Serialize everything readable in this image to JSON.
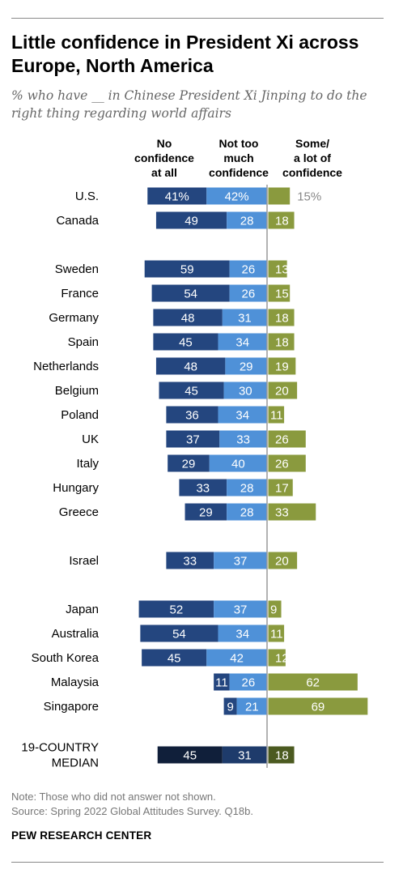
{
  "header": {
    "title": "Little confidence in President Xi across Europe, North America",
    "subtitle": "% who have __ in Chinese President Xi Jinping to do the right thing regarding world affairs"
  },
  "columns": {
    "no_confidence": "No\nconfidence\nat all",
    "not_too_much": "Not too\nmuch\nconfidence",
    "some_lot": "Some/\na lot of\nconfidence"
  },
  "chart_data": {
    "type": "bar",
    "orientation": "horizontal-diverging",
    "series": [
      {
        "name": "No confidence at all",
        "color": "#24467f"
      },
      {
        "name": "Not too much confidence",
        "color": "#4f91d8"
      },
      {
        "name": "Some/a lot of confidence",
        "color": "#8a9a3e"
      }
    ],
    "median_colors": [
      "#101f3a",
      "#1e3b6b",
      "#4b5a20"
    ],
    "rows": [
      {
        "label": "U.S.",
        "values": [
          41,
          42,
          15
        ],
        "labels": [
          "41%",
          "42%",
          "15%"
        ]
      },
      {
        "label": "Canada",
        "values": [
          49,
          28,
          18
        ],
        "labels": [
          "49",
          "28",
          "18"
        ]
      },
      {
        "label": "Sweden",
        "values": [
          59,
          26,
          13
        ],
        "labels": [
          "59",
          "26",
          "13"
        ]
      },
      {
        "label": "France",
        "values": [
          54,
          26,
          15
        ],
        "labels": [
          "54",
          "26",
          "15"
        ]
      },
      {
        "label": "Germany",
        "values": [
          48,
          31,
          18
        ],
        "labels": [
          "48",
          "31",
          "18"
        ]
      },
      {
        "label": "Spain",
        "values": [
          45,
          34,
          18
        ],
        "labels": [
          "45",
          "34",
          "18"
        ]
      },
      {
        "label": "Netherlands",
        "values": [
          48,
          29,
          19
        ],
        "labels": [
          "48",
          "29",
          "19"
        ]
      },
      {
        "label": "Belgium",
        "values": [
          45,
          30,
          20
        ],
        "labels": [
          "45",
          "30",
          "20"
        ]
      },
      {
        "label": "Poland",
        "values": [
          36,
          34,
          11
        ],
        "labels": [
          "36",
          "34",
          "11"
        ]
      },
      {
        "label": "UK",
        "values": [
          37,
          33,
          26
        ],
        "labels": [
          "37",
          "33",
          "26"
        ]
      },
      {
        "label": "Italy",
        "values": [
          29,
          40,
          26
        ],
        "labels": [
          "29",
          "40",
          "26"
        ]
      },
      {
        "label": "Hungary",
        "values": [
          33,
          28,
          17
        ],
        "labels": [
          "33",
          "28",
          "17"
        ]
      },
      {
        "label": "Greece",
        "values": [
          29,
          28,
          33
        ],
        "labels": [
          "29",
          "28",
          "33"
        ]
      },
      {
        "label": "Israel",
        "values": [
          33,
          37,
          20
        ],
        "labels": [
          "33",
          "37",
          "20"
        ]
      },
      {
        "label": "Japan",
        "values": [
          52,
          37,
          9
        ],
        "labels": [
          "52",
          "37",
          "9"
        ]
      },
      {
        "label": "Australia",
        "values": [
          54,
          34,
          11
        ],
        "labels": [
          "54",
          "34",
          "11"
        ]
      },
      {
        "label": "South Korea",
        "values": [
          45,
          42,
          12
        ],
        "labels": [
          "45",
          "42",
          "12"
        ]
      },
      {
        "label": "Malaysia",
        "values": [
          11,
          26,
          62
        ],
        "labels": [
          "11",
          "26",
          "62"
        ]
      },
      {
        "label": "Singapore",
        "values": [
          9,
          21,
          69
        ],
        "labels": [
          "9",
          "21",
          "69"
        ]
      },
      {
        "label": "19-COUNTRY\nMEDIAN",
        "values": [
          45,
          31,
          18
        ],
        "labels": [
          "45",
          "31",
          "18"
        ],
        "median": true
      }
    ]
  },
  "footer": {
    "note": "Note: Those who did not answer not shown.",
    "source": "Source: Spring 2022 Global Attitudes Survey. Q18b.",
    "org": "PEW RESEARCH CENTER"
  }
}
